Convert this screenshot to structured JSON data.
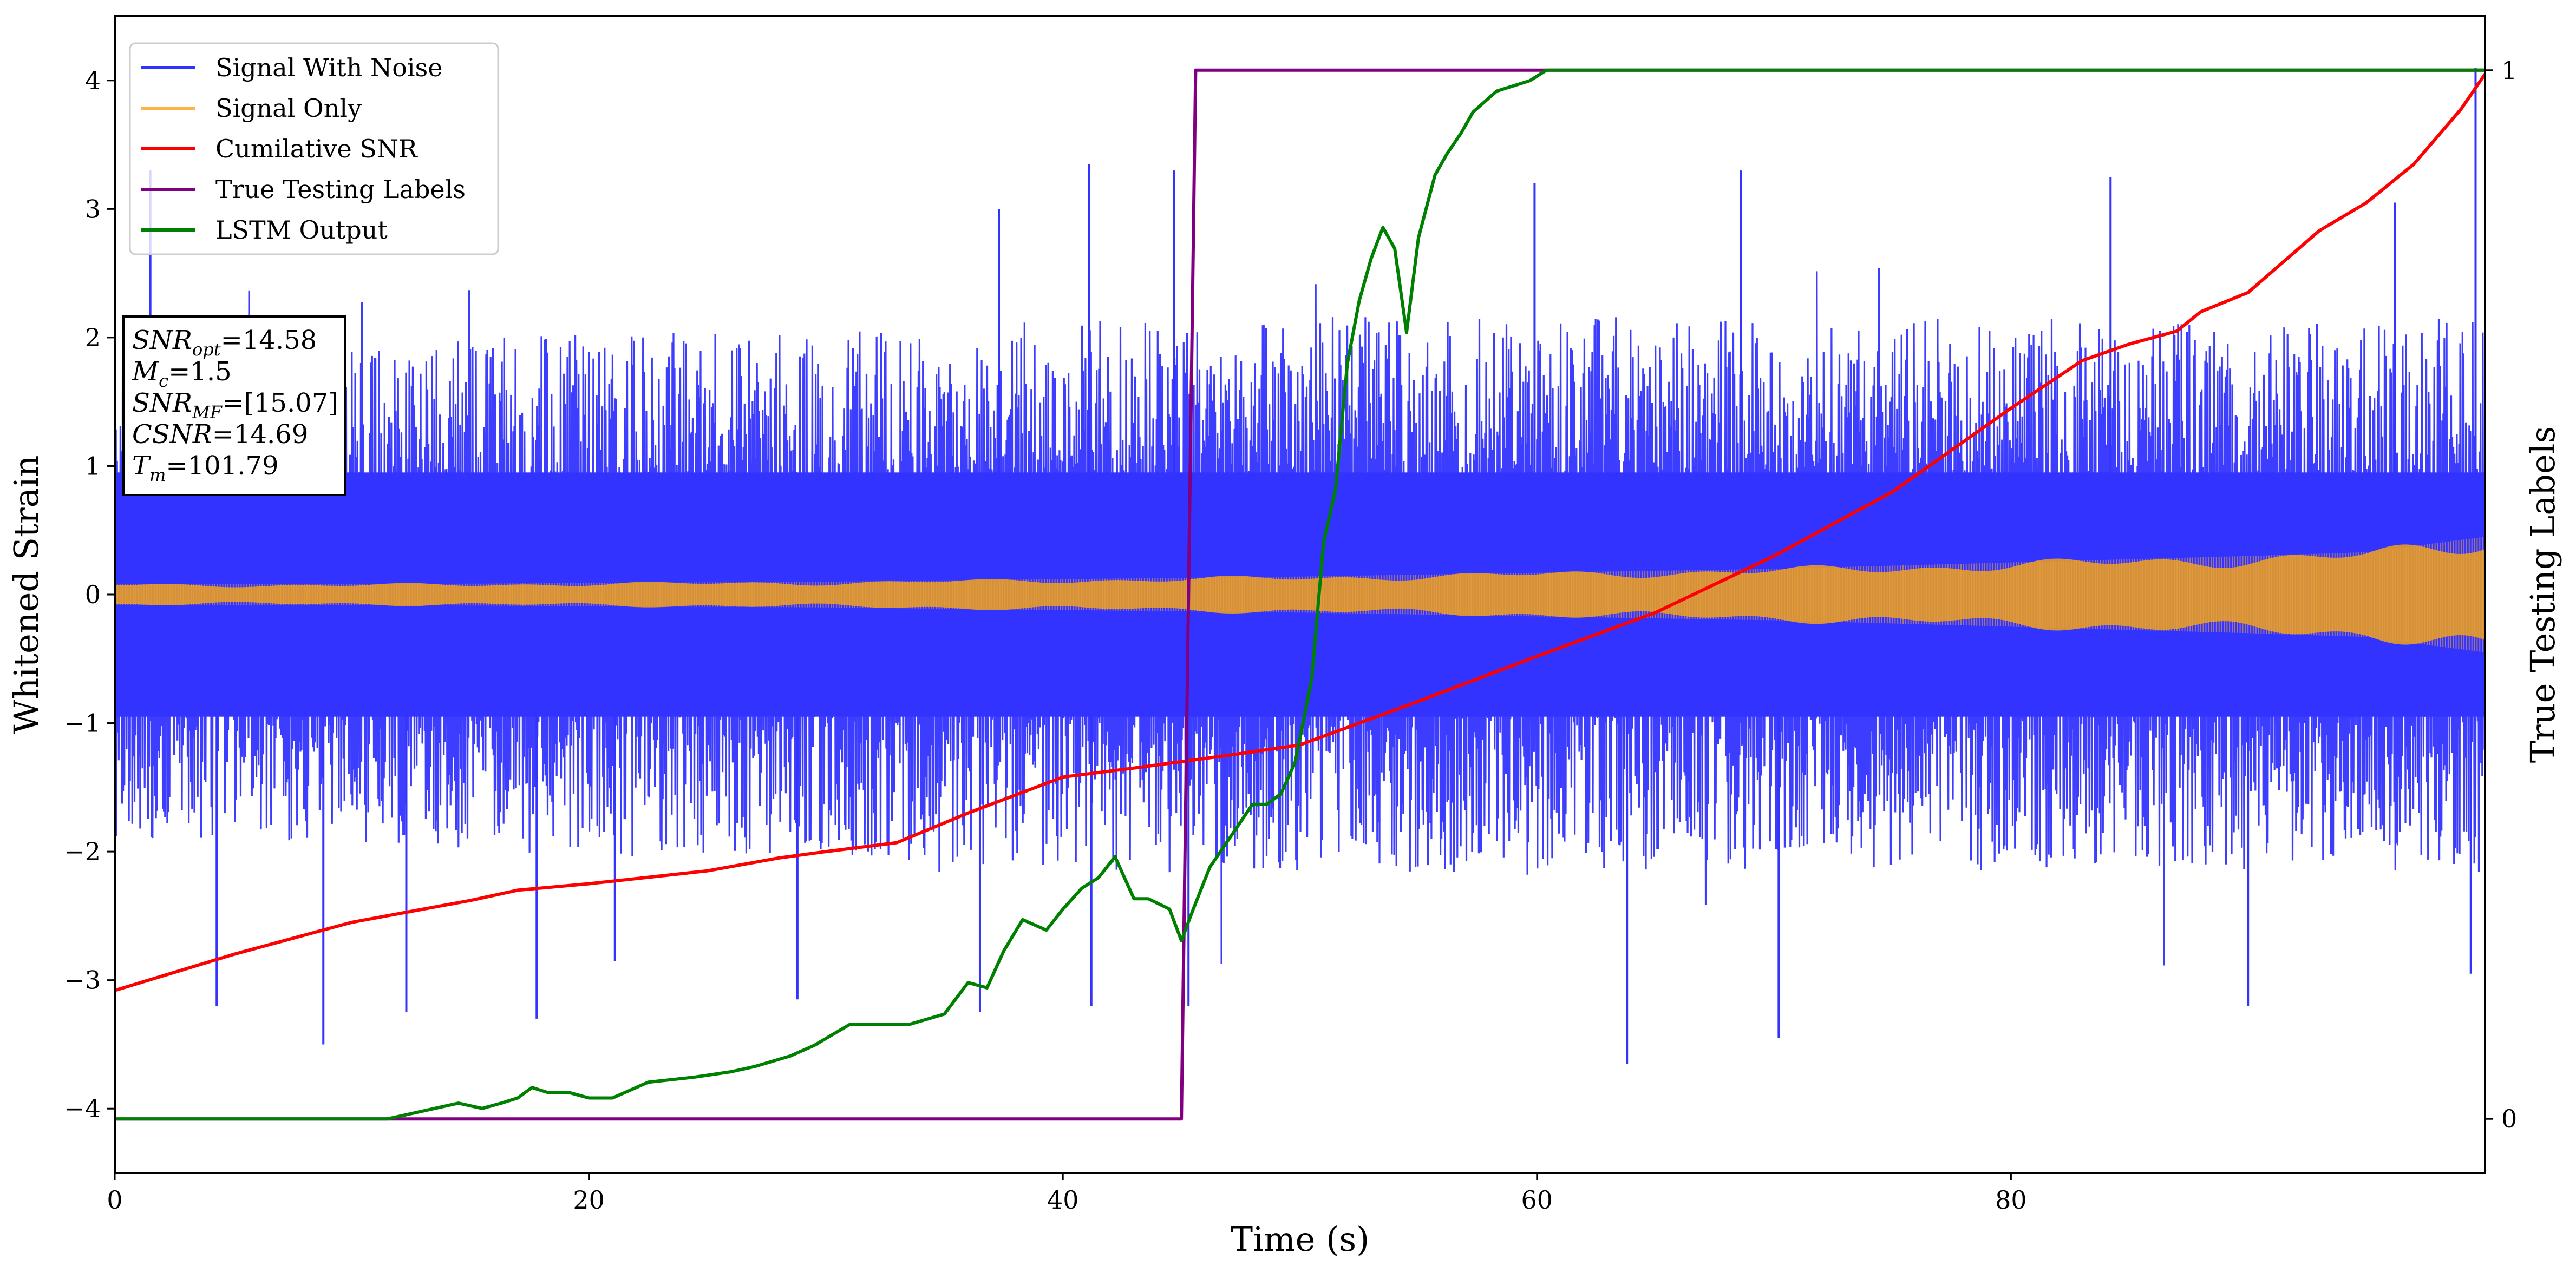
{
  "chart_data": {
    "type": "line",
    "xlabel": "Time (s)",
    "ylabel": "Whitened Strain",
    "y2label": "True Testing Labels",
    "xlim": [
      0,
      100
    ],
    "ylim": [
      -4.5,
      4.5
    ],
    "y2lim": [
      -0.05,
      1.05
    ],
    "x_ticks": [
      0,
      20,
      40,
      60,
      80
    ],
    "y_ticks": [
      -4,
      -3,
      -2,
      -1,
      0,
      1,
      2,
      3,
      4
    ],
    "y2_ticks": [
      0,
      1
    ],
    "tick_labels": {
      "x": [
        "0",
        "20",
        "40",
        "60",
        "80"
      ],
      "y": [
        "−4",
        "−3",
        "−2",
        "−1",
        "0",
        "1",
        "2",
        "3",
        "4"
      ],
      "y2": [
        "0",
        "1"
      ]
    },
    "legend_position": "upper-left",
    "legend": [
      {
        "name": "Signal With Noise",
        "color": "#3333ff"
      },
      {
        "name": "Signal Only",
        "color": "#ffb347"
      },
      {
        "name": "Cumilative SNR",
        "color": "#ff0000"
      },
      {
        "name": "True Testing Labels",
        "color": "#800080"
      },
      {
        "name": "LSTM Output",
        "color": "#008000"
      }
    ],
    "annotation": {
      "lines": [
        {
          "base": "SNR",
          "sub": "opt",
          "rest": "=14.58"
        },
        {
          "base": "M",
          "sub": "c",
          "rest": "=1.5"
        },
        {
          "base": "SNR",
          "sub": "MF",
          "rest": "=[15.07]"
        },
        {
          "base": "CSNR",
          "sub": "",
          "rest": "=14.69"
        },
        {
          "base": "T",
          "sub": "m",
          "rest": "=101.79"
        }
      ]
    },
    "noise_envelope": {
      "description_free": true,
      "x": [
        0,
        10,
        20,
        30,
        40,
        45,
        50,
        60,
        70,
        80,
        90,
        100
      ],
      "upper_typ": [
        1.6,
        1.6,
        1.7,
        1.7,
        1.8,
        1.8,
        1.8,
        1.8,
        1.8,
        1.8,
        1.8,
        1.8
      ],
      "lower_typ": [
        -1.6,
        -1.6,
        -1.7,
        -1.7,
        -1.8,
        -1.8,
        -1.8,
        -1.8,
        -1.8,
        -1.8,
        -1.8,
        -1.8
      ],
      "spikes": [
        {
          "x": 4.3,
          "y": -3.2
        },
        {
          "x": 8.8,
          "y": -3.5
        },
        {
          "x": 12.3,
          "y": -3.25
        },
        {
          "x": 17.8,
          "y": -3.3
        },
        {
          "x": 21.1,
          "y": -2.85
        },
        {
          "x": 28.8,
          "y": -3.15
        },
        {
          "x": 36.5,
          "y": -3.25
        },
        {
          "x": 41.2,
          "y": -3.2
        },
        {
          "x": 45.3,
          "y": -3.2
        },
        {
          "x": 63.8,
          "y": -3.65
        },
        {
          "x": 70.2,
          "y": -3.45
        },
        {
          "x": 90.0,
          "y": -3.2
        },
        {
          "x": 99.4,
          "y": -2.95
        },
        {
          "x": 41.1,
          "y": 3.35
        },
        {
          "x": 44.7,
          "y": 3.3
        },
        {
          "x": 59.9,
          "y": 3.2
        },
        {
          "x": 68.6,
          "y": 3.3
        },
        {
          "x": 84.2,
          "y": 3.25
        },
        {
          "x": 96.2,
          "y": 3.05
        },
        {
          "x": 99.6,
          "y": 4.1
        },
        {
          "x": 1.5,
          "y": 3.3
        },
        {
          "x": 37.3,
          "y": 3.0
        }
      ]
    },
    "signal_only": {
      "x": [
        0,
        10,
        20,
        30,
        40,
        50,
        60,
        70,
        80,
        90,
        95,
        100
      ],
      "amplitude": [
        0.08,
        0.08,
        0.09,
        0.1,
        0.12,
        0.14,
        0.17,
        0.2,
        0.25,
        0.3,
        0.33,
        0.45
      ]
    },
    "series": [
      {
        "name": "Cumilative SNR",
        "axis": "left",
        "color": "#ff0000",
        "x": [
          0,
          5,
          10,
          15,
          17,
          20,
          25,
          28,
          30,
          33,
          36,
          40,
          43,
          45,
          47,
          50,
          55,
          60,
          65,
          70,
          75,
          80,
          83,
          85,
          87,
          88,
          90,
          93,
          95,
          97,
          99,
          100
        ],
        "y": [
          -3.08,
          -2.8,
          -2.55,
          -2.38,
          -2.3,
          -2.25,
          -2.15,
          -2.05,
          -2.0,
          -1.93,
          -1.7,
          -1.42,
          -1.35,
          -1.3,
          -1.25,
          -1.17,
          -0.83,
          -0.48,
          -0.14,
          0.3,
          0.8,
          1.45,
          1.82,
          1.95,
          2.05,
          2.2,
          2.35,
          2.83,
          3.05,
          3.35,
          3.78,
          4.05
        ]
      },
      {
        "name": "True Testing Labels",
        "axis": "right",
        "color": "#800080",
        "x": [
          0,
          45.0,
          45.6,
          100
        ],
        "y": [
          0,
          0,
          1,
          1
        ]
      },
      {
        "name": "LSTM Output",
        "axis": "right",
        "color": "#008000",
        "x": [
          0,
          11.5,
          12.5,
          13.5,
          14.5,
          15.5,
          16.3,
          17.0,
          17.6,
          18.3,
          19.2,
          20.0,
          21.0,
          22.5,
          24.5,
          26.0,
          27.0,
          28.5,
          29.5,
          31.0,
          32.0,
          33.5,
          35.0,
          36.0,
          36.8,
          37.5,
          38.3,
          39.3,
          40.0,
          40.8,
          41.5,
          42.2,
          43.0,
          43.6,
          44.5,
          45.0,
          45.5,
          46.2,
          46.8,
          47.4,
          48.0,
          48.6,
          49.2,
          49.8,
          50.5,
          51.0,
          51.5,
          52.0,
          52.5,
          53.0,
          53.5,
          54.0,
          54.5,
          55.0,
          55.7,
          56.2,
          56.8,
          57.3,
          57.8,
          58.3,
          59.0,
          59.7,
          60.4,
          61.0,
          62.0,
          63.0,
          63.7,
          64.3,
          65.0,
          66.0,
          67.0,
          68.0,
          70.0,
          72.0,
          100
        ],
        "y": [
          0,
          0,
          0.005,
          0.01,
          0.015,
          0.01,
          0.015,
          0.02,
          0.03,
          0.025,
          0.025,
          0.02,
          0.02,
          0.035,
          0.04,
          0.045,
          0.05,
          0.06,
          0.07,
          0.09,
          0.09,
          0.09,
          0.1,
          0.13,
          0.125,
          0.16,
          0.19,
          0.18,
          0.2,
          0.22,
          0.23,
          0.25,
          0.21,
          0.21,
          0.2,
          0.17,
          0.2,
          0.24,
          0.26,
          0.28,
          0.3,
          0.3,
          0.31,
          0.34,
          0.42,
          0.55,
          0.6,
          0.72,
          0.78,
          0.82,
          0.85,
          0.83,
          0.75,
          0.84,
          0.9,
          0.92,
          0.94,
          0.96,
          0.97,
          0.98,
          0.985,
          0.99,
          1.0,
          1.0,
          1.0,
          1.0,
          1.0,
          1.0,
          1.0,
          1.0,
          1.0,
          1.0,
          1.0,
          1.0,
          1.0
        ]
      }
    ]
  }
}
